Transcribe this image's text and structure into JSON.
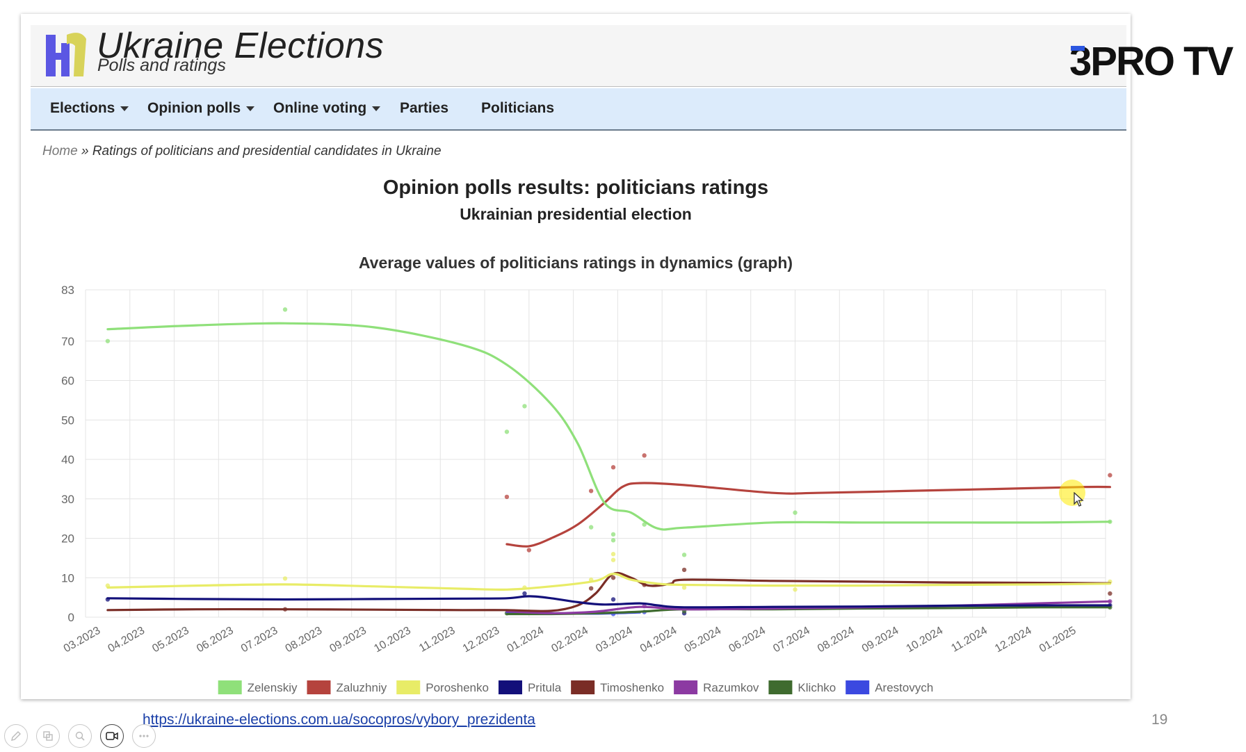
{
  "site": {
    "title": "Ukraine Elections",
    "subtitle": "Polls and ratings"
  },
  "nav": {
    "items": [
      {
        "label": "Elections",
        "dropdown": true
      },
      {
        "label": "Opinion polls",
        "dropdown": true
      },
      {
        "label": "Online voting",
        "dropdown": true
      },
      {
        "label": "Parties",
        "dropdown": false
      },
      {
        "label": "Politicians",
        "dropdown": false
      }
    ]
  },
  "breadcrumb": {
    "home": "Home",
    "separator": "»",
    "current": "Ratings of politicians and presidential candidates in Ukraine"
  },
  "page": {
    "title": "Opinion polls results: politicians ratings",
    "subtitle": "Ukrainian presidential election"
  },
  "brand": {
    "name": "3PRO TV",
    "three": "3",
    "rest": "PRO TV",
    "accent": "#2b56e0"
  },
  "footer": {
    "link": "https://ukraine-elections.com.ua/socopros/vybory_prezidenta",
    "page_number": "19"
  },
  "toolbar": {
    "icons": [
      "pen-icon",
      "slides-icon",
      "zoom-icon",
      "video-camera-icon",
      "more-icon"
    ]
  },
  "chart_data": {
    "type": "line",
    "title": "Average values of politicians ratings in dynamics (graph)",
    "x_labels": [
      "03.2023",
      "04.2023",
      "05.2023",
      "06.2023",
      "07.2023",
      "08.2023",
      "09.2023",
      "10.2023",
      "11.2023",
      "12.2023",
      "01.2024",
      "02.2024",
      "03.2024",
      "04.2024",
      "05.2024",
      "06.2024",
      "07.2024",
      "08.2024",
      "09.2024",
      "10.2024",
      "11.2024",
      "12.2024",
      "01.2025"
    ],
    "ylim": [
      0,
      83
    ],
    "y_ticks": [
      0,
      10,
      20,
      30,
      40,
      50,
      60,
      70,
      83
    ],
    "grid": true,
    "legend_position": "bottom",
    "series": [
      {
        "name": "Zelenskiy",
        "color": "#8fe07a",
        "points": [
          [
            0,
            73
          ],
          [
            2,
            74
          ],
          [
            4,
            74.5
          ],
          [
            6,
            73.5
          ],
          [
            8,
            69
          ],
          [
            9,
            64
          ],
          [
            10,
            54
          ],
          [
            10.6,
            44
          ],
          [
            11.2,
            29
          ],
          [
            11.8,
            26.5
          ],
          [
            12.4,
            22.5
          ],
          [
            13,
            22.7
          ],
          [
            15,
            24
          ],
          [
            17,
            24
          ],
          [
            19,
            24
          ],
          [
            21,
            24
          ],
          [
            22.6,
            24.2
          ]
        ],
        "dots": [
          [
            0,
            70
          ],
          [
            4,
            78
          ],
          [
            9,
            47
          ],
          [
            9.4,
            53.5
          ],
          [
            10.9,
            22.8
          ],
          [
            11.4,
            21
          ],
          [
            11.4,
            19.5
          ],
          [
            12.1,
            23.5
          ],
          [
            13,
            15.8
          ],
          [
            15.5,
            26.5
          ],
          [
            22.6,
            24.2
          ]
        ]
      },
      {
        "name": "Zaluzhniy",
        "color": "#b5433d",
        "points": [
          [
            9,
            18.5
          ],
          [
            9.5,
            18
          ],
          [
            10,
            20
          ],
          [
            10.6,
            23.5
          ],
          [
            11.2,
            29
          ],
          [
            11.6,
            33
          ],
          [
            12,
            34
          ],
          [
            13,
            33.5
          ],
          [
            15,
            31.5
          ],
          [
            16,
            31.5
          ],
          [
            18,
            32
          ],
          [
            20,
            32.5
          ],
          [
            22,
            33
          ],
          [
            22.6,
            33
          ]
        ],
        "dots": [
          [
            9,
            30.5
          ],
          [
            9.5,
            17
          ],
          [
            10.9,
            32
          ],
          [
            11.4,
            38
          ],
          [
            12.1,
            41
          ],
          [
            22.6,
            36
          ]
        ]
      },
      {
        "name": "Poroshenko",
        "color": "#e8ec67",
        "points": [
          [
            0,
            7.5
          ],
          [
            2,
            8
          ],
          [
            4,
            8.3
          ],
          [
            6,
            7.8
          ],
          [
            8,
            7.2
          ],
          [
            9,
            7
          ],
          [
            10,
            7.8
          ],
          [
            11,
            9.2
          ],
          [
            11.4,
            11
          ],
          [
            11.8,
            9.5
          ],
          [
            12.4,
            8.5
          ],
          [
            13,
            8.2
          ],
          [
            15,
            8
          ],
          [
            17,
            8
          ],
          [
            19,
            8.2
          ],
          [
            21,
            8.3
          ],
          [
            22.6,
            8.5
          ]
        ],
        "dots": [
          [
            0,
            8
          ],
          [
            4,
            9.8
          ],
          [
            9.4,
            7.5
          ],
          [
            10.9,
            9.5
          ],
          [
            11.4,
            14.5
          ],
          [
            11.4,
            16
          ],
          [
            13,
            7.5
          ],
          [
            15.5,
            7
          ],
          [
            22.6,
            9
          ]
        ]
      },
      {
        "name": "Pritula",
        "color": "#13107a",
        "points": [
          [
            0,
            4.8
          ],
          [
            2,
            4.6
          ],
          [
            4,
            4.5
          ],
          [
            6,
            4.6
          ],
          [
            8,
            4.7
          ],
          [
            9,
            4.8
          ],
          [
            9.5,
            5.3
          ],
          [
            10,
            4.8
          ],
          [
            10.6,
            3.8
          ],
          [
            11.2,
            3.2
          ],
          [
            12,
            3.5
          ],
          [
            12.4,
            3
          ],
          [
            13,
            2.5
          ],
          [
            15,
            2.6
          ],
          [
            17,
            2.7
          ],
          [
            19,
            2.9
          ],
          [
            21,
            3
          ],
          [
            22.6,
            3
          ]
        ],
        "dots": [
          [
            0,
            4.5
          ],
          [
            9.4,
            6
          ],
          [
            11.4,
            4.5
          ],
          [
            13,
            1
          ],
          [
            22.6,
            3
          ]
        ]
      },
      {
        "name": "Timoshenko",
        "color": "#7a2d26",
        "points": [
          [
            0,
            1.8
          ],
          [
            2,
            2
          ],
          [
            4,
            2
          ],
          [
            6,
            1.9
          ],
          [
            8,
            1.8
          ],
          [
            9,
            1.8
          ],
          [
            10,
            1.6
          ],
          [
            10.6,
            3
          ],
          [
            11,
            6
          ],
          [
            11.4,
            11
          ],
          [
            11.8,
            10
          ],
          [
            12.2,
            8
          ],
          [
            12.7,
            8.5
          ],
          [
            13,
            9.5
          ],
          [
            15,
            9.2
          ],
          [
            17,
            9
          ],
          [
            19,
            8.8
          ],
          [
            21,
            8.7
          ],
          [
            22.6,
            8.6
          ]
        ],
        "dots": [
          [
            4,
            2
          ],
          [
            10.9,
            7.3
          ],
          [
            11.4,
            10
          ],
          [
            12.1,
            8.2
          ],
          [
            13,
            12
          ],
          [
            22.6,
            6
          ]
        ]
      },
      {
        "name": "Razumkov",
        "color": "#8c3aa2",
        "points": [
          [
            9,
            1.5
          ],
          [
            10,
            1
          ],
          [
            11,
            1.4
          ],
          [
            12,
            2.6
          ],
          [
            13,
            2
          ],
          [
            15,
            2.2
          ],
          [
            17,
            2.5
          ],
          [
            19,
            2.9
          ],
          [
            21,
            3.5
          ],
          [
            22.6,
            4
          ]
        ],
        "dots": [
          [
            12.1,
            2.8
          ],
          [
            22.6,
            4
          ]
        ]
      },
      {
        "name": "Klichko",
        "color": "#3f6b2f",
        "points": [
          [
            9,
            0.8
          ],
          [
            10,
            0.8
          ],
          [
            11,
            1
          ],
          [
            12,
            1.4
          ],
          [
            13,
            2
          ],
          [
            15,
            2
          ],
          [
            17,
            2.2
          ],
          [
            19,
            2.3
          ],
          [
            21,
            2.5
          ],
          [
            22.6,
            2.5
          ]
        ],
        "dots": [
          [
            9,
            1
          ],
          [
            13,
            1.5
          ],
          [
            22.6,
            2.5
          ]
        ]
      },
      {
        "name": "Arestovych",
        "color": "#3b49e0",
        "points": [
          [
            9,
            1.2
          ],
          [
            10,
            1
          ],
          [
            11,
            0.9
          ],
          [
            12,
            1.2
          ]
        ],
        "dots": [
          [
            11.4,
            0.8
          ],
          [
            12.1,
            1.3
          ]
        ]
      }
    ]
  }
}
